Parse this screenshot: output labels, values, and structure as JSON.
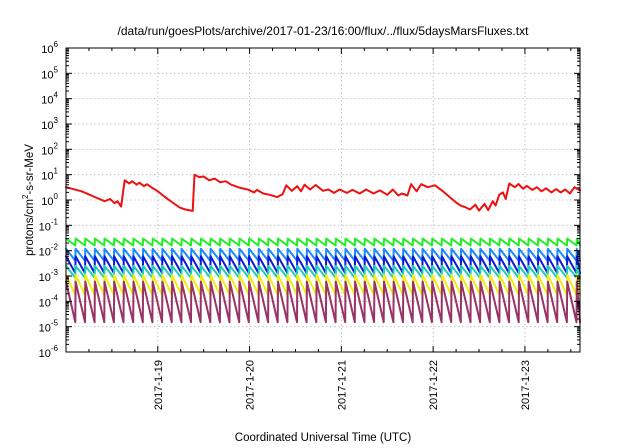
{
  "chart_data": {
    "type": "line",
    "title": "/data/run/goesPlots/archive/2017-01-23/16:00/flux/../flux/5daysMarsFluxes.txt",
    "xlabel": "Coordinated Universal Time (UTC)",
    "ylabel": {
      "base": "protons/cm",
      "sup": "2",
      "rest": "-s-sr-MeV"
    },
    "xlim": [
      -1.0,
      4.6
    ],
    "ylim_log10": [
      -6,
      6
    ],
    "yscale": "log",
    "grid": true,
    "legend": "none",
    "xticks": [
      {
        "value": 0,
        "label": "2017-1-19"
      },
      {
        "value": 1,
        "label": "2017-1-20"
      },
      {
        "value": 2,
        "label": "2017-1-21"
      },
      {
        "value": 3,
        "label": "2017-1-22"
      },
      {
        "value": 4,
        "label": "2017-1-23"
      }
    ],
    "yticks": [
      {
        "exp": 6,
        "label": "10",
        "sup": "6"
      },
      {
        "exp": 5,
        "label": "10",
        "sup": "5"
      },
      {
        "exp": 4,
        "label": "10",
        "sup": "4"
      },
      {
        "exp": 3,
        "label": "10",
        "sup": "3"
      },
      {
        "exp": 2,
        "label": "10",
        "sup": "2"
      },
      {
        "exp": 1,
        "label": "10",
        "sup": "1"
      },
      {
        "exp": 0,
        "label": "10",
        "sup": "0"
      },
      {
        "exp": -1,
        "label": "10",
        "sup": "-1"
      },
      {
        "exp": -2,
        "label": "10",
        "sup": "-2"
      },
      {
        "exp": -3,
        "label": "10",
        "sup": "-3"
      },
      {
        "exp": -4,
        "label": "10",
        "sup": "-4"
      },
      {
        "exp": -5,
        "label": "10",
        "sup": "-5"
      },
      {
        "exp": -6,
        "label": "10",
        "sup": "-6"
      }
    ],
    "series": [
      {
        "color": "#ee1111",
        "points": [
          [
            -1.0,
            3.2
          ],
          [
            -0.83,
            2.2
          ],
          [
            -0.66,
            1.2
          ],
          [
            -0.58,
            0.9
          ],
          [
            -0.52,
            1.1
          ],
          [
            -0.47,
            0.75
          ],
          [
            -0.44,
            0.9
          ],
          [
            -0.4,
            0.55
          ],
          [
            -0.36,
            6.0
          ],
          [
            -0.31,
            4.5
          ],
          [
            -0.28,
            5.5
          ],
          [
            -0.23,
            4.0
          ],
          [
            -0.2,
            4.8
          ],
          [
            -0.15,
            3.5
          ],
          [
            -0.12,
            4.2
          ],
          [
            -0.06,
            3.0
          ],
          [
            0.0,
            2.2
          ],
          [
            0.08,
            1.3
          ],
          [
            0.16,
            0.8
          ],
          [
            0.24,
            0.5
          ],
          [
            0.3,
            0.42
          ],
          [
            0.38,
            0.37
          ],
          [
            0.4,
            10.0
          ],
          [
            0.45,
            8.0
          ],
          [
            0.5,
            8.5
          ],
          [
            0.56,
            6.0
          ],
          [
            0.62,
            7.0
          ],
          [
            0.68,
            5.0
          ],
          [
            0.74,
            5.5
          ],
          [
            0.8,
            4.0
          ],
          [
            0.9,
            3.0
          ],
          [
            0.98,
            2.6
          ],
          [
            1.05,
            2.0
          ],
          [
            1.08,
            2.5
          ],
          [
            1.15,
            1.8
          ],
          [
            1.22,
            1.6
          ],
          [
            1.3,
            1.3
          ],
          [
            1.36,
            1.7
          ],
          [
            1.4,
            3.8
          ],
          [
            1.46,
            2.3
          ],
          [
            1.52,
            3.5
          ],
          [
            1.56,
            2.2
          ],
          [
            1.6,
            4.0
          ],
          [
            1.66,
            2.6
          ],
          [
            1.72,
            3.9
          ],
          [
            1.8,
            2.3
          ],
          [
            1.86,
            2.6
          ],
          [
            1.92,
            1.9
          ],
          [
            1.98,
            2.6
          ],
          [
            2.06,
            1.9
          ],
          [
            2.12,
            2.5
          ],
          [
            2.2,
            1.8
          ],
          [
            2.27,
            2.6
          ],
          [
            2.35,
            1.8
          ],
          [
            2.42,
            2.4
          ],
          [
            2.5,
            1.6
          ],
          [
            2.56,
            2.6
          ],
          [
            2.62,
            1.5
          ],
          [
            2.66,
            1.8
          ],
          [
            2.72,
            1.5
          ],
          [
            2.76,
            4.2
          ],
          [
            2.82,
            2.2
          ],
          [
            2.87,
            4.2
          ],
          [
            2.94,
            3.2
          ],
          [
            3.02,
            3.8
          ],
          [
            3.1,
            2.3
          ],
          [
            3.18,
            1.3
          ],
          [
            3.25,
            0.8
          ],
          [
            3.3,
            0.6
          ],
          [
            3.36,
            0.5
          ],
          [
            3.4,
            0.42
          ],
          [
            3.46,
            0.65
          ],
          [
            3.5,
            0.38
          ],
          [
            3.56,
            0.7
          ],
          [
            3.6,
            0.4
          ],
          [
            3.65,
            0.9
          ],
          [
            3.68,
            0.6
          ],
          [
            3.72,
            1.6
          ],
          [
            3.76,
            2.0
          ],
          [
            3.79,
            1.1
          ],
          [
            3.83,
            4.5
          ],
          [
            3.89,
            3.2
          ],
          [
            3.93,
            4.3
          ],
          [
            3.98,
            2.8
          ],
          [
            4.02,
            3.6
          ],
          [
            4.08,
            2.5
          ],
          [
            4.13,
            3.2
          ],
          [
            4.18,
            2.2
          ],
          [
            4.23,
            2.9
          ],
          [
            4.29,
            2.0
          ],
          [
            4.34,
            2.7
          ],
          [
            4.39,
            2.0
          ],
          [
            4.44,
            2.6
          ],
          [
            4.49,
            1.8
          ],
          [
            4.54,
            3.2
          ],
          [
            4.6,
            2.4
          ]
        ]
      },
      {
        "color": "#22ee22",
        "sawtooth": {
          "start": -1.0,
          "end": 4.6,
          "period": 0.105,
          "peak": 0.03,
          "low": 0.016
        }
      },
      {
        "color": "#1e88ff",
        "sawtooth": {
          "start": -1.0,
          "end": 4.6,
          "period": 0.105,
          "peak": 0.012,
          "low": 0.004
        }
      },
      {
        "color": "#0a1adb",
        "sawtooth": {
          "start": -1.0,
          "end": 4.6,
          "period": 0.105,
          "peak": 0.006,
          "low": 0.0013
        }
      },
      {
        "color": "#22ccbb",
        "sawtooth": {
          "start": -1.0,
          "end": 4.6,
          "period": 0.105,
          "peak": 0.0025,
          "low": 0.00085
        }
      },
      {
        "color": "#eeee11",
        "sawtooth": {
          "start": -1.0,
          "end": 4.6,
          "period": 0.105,
          "peak": 0.0011,
          "low": 0.00018
        }
      },
      {
        "color": "#993366",
        "sawtooth": {
          "start": -1.0,
          "end": 4.6,
          "period": 0.105,
          "peak": 0.0006,
          "low": 1.5e-05
        }
      }
    ]
  }
}
